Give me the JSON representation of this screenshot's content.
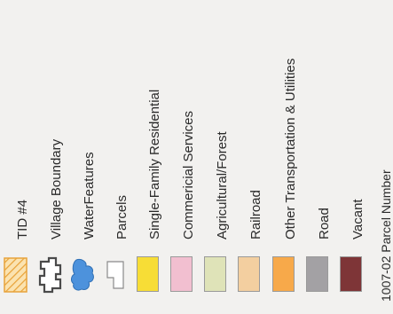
{
  "legend": {
    "items": [
      {
        "label": "TID #4",
        "icon": "hatched-square-icon",
        "color": "#f5c46a"
      },
      {
        "label": "Village Boundary",
        "icon": "boundary-outline-icon",
        "color": "#555555"
      },
      {
        "label": "WaterFeatures",
        "icon": "water-blob-icon",
        "color": "#4a8fd6"
      },
      {
        "label": "Parcels",
        "icon": "parcel-outline-icon",
        "color": "#ffffff"
      },
      {
        "label": "Single-Family Residential",
        "icon": "swatch-icon",
        "color": "#f7dd36"
      },
      {
        "label": "Commericial Services",
        "icon": "swatch-icon",
        "color": "#f2bfd0"
      },
      {
        "label": "Agricultural/Forest",
        "icon": "swatch-icon",
        "color": "#dfe3b8"
      },
      {
        "label": "Railroad",
        "icon": "swatch-icon",
        "color": "#f3cfa0"
      },
      {
        "label": "Other Transportation & Utilities",
        "icon": "swatch-icon",
        "color": "#f7a94a"
      },
      {
        "label": "Road",
        "icon": "swatch-icon",
        "color": "#a3a1a4"
      },
      {
        "label": "Vacant",
        "icon": "swatch-icon",
        "color": "#7e3537"
      },
      {
        "label": "1007-02 Parcel Number",
        "icon": "",
        "color": ""
      }
    ]
  }
}
